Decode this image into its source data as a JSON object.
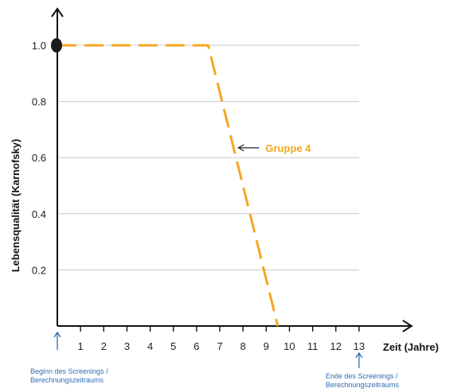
{
  "chart_data": {
    "type": "line",
    "title": "",
    "xlabel": "Zeit (Jahre)",
    "ylabel": "Lebensqualität (Karnofsky)",
    "xlim": [
      0,
      15
    ],
    "ylim": [
      0,
      1.1
    ],
    "xticks": [
      "1",
      "2",
      "3",
      "4",
      "5",
      "6",
      "7",
      "8",
      "9",
      "10",
      "11",
      "12",
      "13"
    ],
    "yticks": [
      "0.2",
      "0.4",
      "0.6",
      "0.8",
      "1.0"
    ],
    "grid": "horizontal",
    "series": [
      {
        "name": "Gruppe 4",
        "color": "#F5A623",
        "style": "dashed",
        "x": [
          0,
          6.5,
          9.5
        ],
        "y": [
          1.0,
          1.0,
          0.0
        ]
      }
    ],
    "start_marker": {
      "x": 0,
      "y": 1.0,
      "color": "#1a1a1a"
    },
    "annotations": {
      "series_label": "Gruppe 4",
      "start_note_line1": "Beginn des Screenings /",
      "start_note_line2": "Berechnungszeitraums",
      "start_note_x": 0,
      "end_note_line1": "Ende des Screenings /",
      "end_note_line2": "Berechnungszeitraums",
      "end_note_x": 13,
      "note_color": "#2E6DB4"
    }
  }
}
